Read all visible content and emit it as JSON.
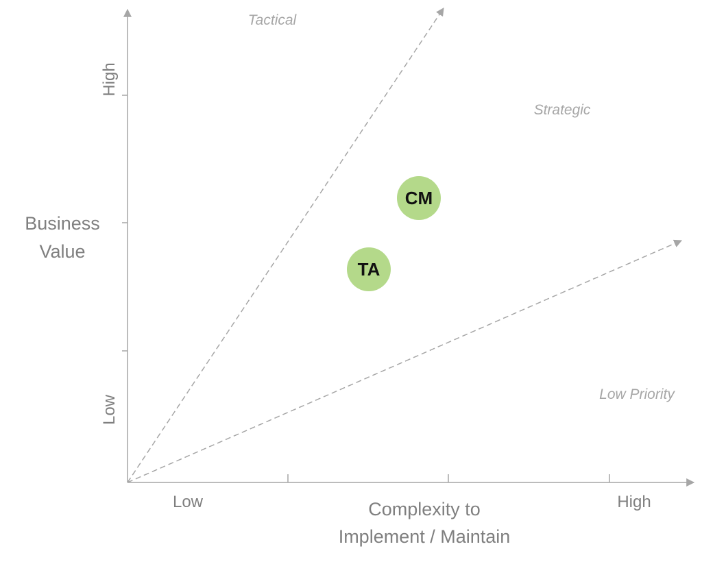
{
  "y_axis": {
    "label_line1": "Business",
    "label_line2": "Value",
    "high_label": "High",
    "low_label": "Low"
  },
  "x_axis": {
    "label_line1": "Complexity to",
    "label_line2": "Implement / Maintain",
    "low_label": "Low",
    "high_label": "High"
  },
  "zones": {
    "tactical": "Tactical",
    "strategic": "Strategic",
    "low_priority": "Low Priority"
  },
  "items": [
    {
      "label": "CM",
      "color": "#b4d98a"
    },
    {
      "label": "TA",
      "color": "#b4d98a"
    }
  ],
  "colors": {
    "axis": "#a6a6a6",
    "guide_line": "#a6a6a6"
  }
}
